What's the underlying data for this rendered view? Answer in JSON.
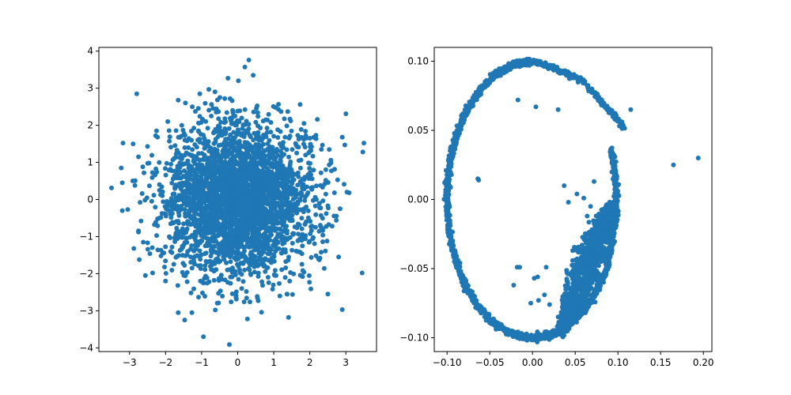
{
  "chart_data": [
    {
      "type": "scatter",
      "title": "",
      "xlabel": "",
      "ylabel": "",
      "xlim": [
        -3.85,
        3.85
      ],
      "ylim": [
        -4.1,
        4.1
      ],
      "xticks": [
        -3,
        -2,
        -1,
        0,
        1,
        2,
        3
      ],
      "xtick_labels": [
        "−3",
        "−2",
        "−1",
        "0",
        "1",
        "2",
        "3"
      ],
      "yticks": [
        -4,
        -3,
        -2,
        -1,
        0,
        1,
        2,
        3,
        4
      ],
      "ytick_labels": [
        "−4",
        "−3",
        "−2",
        "−1",
        "0",
        "1",
        "2",
        "3",
        "4"
      ],
      "grid": false,
      "color": "#1f77b4",
      "series": [
        {
          "values": [
            {
              "x": 0.31,
              "y": 3.76
            },
            {
              "x": 0.2,
              "y": 3.57
            },
            {
              "x": 0.43,
              "y": 3.35
            },
            {
              "x": 0.02,
              "y": 3.2
            },
            {
              "x": -0.27,
              "y": 3.27
            },
            {
              "x": -0.8,
              "y": 2.97
            },
            {
              "x": -0.63,
              "y": 2.9
            },
            {
              "x": -1.05,
              "y": 2.85
            },
            {
              "x": -2.8,
              "y": 2.85
            },
            {
              "x": -0.36,
              "y": 2.72
            },
            {
              "x": -1.65,
              "y": 2.68
            },
            {
              "x": 1.73,
              "y": 2.56
            },
            {
              "x": -1.45,
              "y": 2.6
            },
            {
              "x": -1.26,
              "y": 2.5
            },
            {
              "x": 0.99,
              "y": 2.51
            },
            {
              "x": 1.13,
              "y": 2.43
            },
            {
              "x": 3.0,
              "y": 2.31
            },
            {
              "x": -0.14,
              "y": 2.4
            },
            {
              "x": 0.44,
              "y": 2.36
            },
            {
              "x": 1.47,
              "y": 2.12
            },
            {
              "x": 2.21,
              "y": 2.16
            },
            {
              "x": -1.94,
              "y": 2.1
            },
            {
              "x": -1.55,
              "y": 2.0
            },
            {
              "x": 1.88,
              "y": 1.84
            },
            {
              "x": 2.0,
              "y": 1.65
            },
            {
              "x": -2.25,
              "y": 1.85
            },
            {
              "x": 2.9,
              "y": 1.68
            },
            {
              "x": -3.18,
              "y": 1.52
            },
            {
              "x": -2.9,
              "y": 1.5
            },
            {
              "x": -2.5,
              "y": 1.43
            },
            {
              "x": 3.5,
              "y": 1.52
            },
            {
              "x": 3.47,
              "y": 1.28
            },
            {
              "x": 2.32,
              "y": 1.35
            },
            {
              "x": 2.97,
              "y": 1.47
            },
            {
              "x": -2.75,
              "y": 1.15
            },
            {
              "x": -2.46,
              "y": 0.98
            },
            {
              "x": -3.23,
              "y": 0.85
            },
            {
              "x": -2.6,
              "y": 0.72
            },
            {
              "x": 2.6,
              "y": 0.77
            },
            {
              "x": 2.77,
              "y": 0.53
            },
            {
              "x": -2.91,
              "y": 0.5
            },
            {
              "x": -3.2,
              "y": 0.45
            },
            {
              "x": -2.85,
              "y": 0.38
            },
            {
              "x": -3.5,
              "y": 0.31
            },
            {
              "x": 2.95,
              "y": 0.41
            },
            {
              "x": 3.03,
              "y": 0.2
            },
            {
              "x": 3.09,
              "y": 0.18
            },
            {
              "x": -2.65,
              "y": 0.16
            },
            {
              "x": -2.57,
              "y": -0.02
            },
            {
              "x": 2.5,
              "y": -0.17
            },
            {
              "x": 2.84,
              "y": -0.25
            },
            {
              "x": -3.2,
              "y": -0.3
            },
            {
              "x": -3.05,
              "y": -0.27
            },
            {
              "x": 2.31,
              "y": -0.43
            },
            {
              "x": -2.68,
              "y": -0.58
            },
            {
              "x": -2.31,
              "y": -0.68
            },
            {
              "x": 2.62,
              "y": -0.72
            },
            {
              "x": -2.75,
              "y": -0.88
            },
            {
              "x": 2.36,
              "y": -0.96
            },
            {
              "x": 2.48,
              "y": -1.12
            },
            {
              "x": -2.88,
              "y": -1.32
            },
            {
              "x": -2.37,
              "y": -1.3
            },
            {
              "x": -2.05,
              "y": -1.44
            },
            {
              "x": 2.8,
              "y": -1.55
            },
            {
              "x": -2.73,
              "y": -1.62
            },
            {
              "x": -2.03,
              "y": -1.82
            },
            {
              "x": 2.4,
              "y": -1.86
            },
            {
              "x": -2.36,
              "y": -1.98
            },
            {
              "x": -2.56,
              "y": -2.05
            },
            {
              "x": 3.45,
              "y": -1.98
            },
            {
              "x": 1.99,
              "y": -2.23
            },
            {
              "x": -2.0,
              "y": -2.2
            },
            {
              "x": -1.66,
              "y": -2.32
            },
            {
              "x": 2.03,
              "y": -2.41
            },
            {
              "x": 2.5,
              "y": -2.55
            },
            {
              "x": 1.52,
              "y": -2.56
            },
            {
              "x": -0.91,
              "y": -2.61
            },
            {
              "x": 0.55,
              "y": -2.66
            },
            {
              "x": 0.34,
              "y": -2.76
            },
            {
              "x": -0.53,
              "y": -2.79
            },
            {
              "x": 2.9,
              "y": -2.97
            },
            {
              "x": -0.62,
              "y": -2.98
            },
            {
              "x": -1.27,
              "y": -3.05
            },
            {
              "x": 0.66,
              "y": -3.04
            },
            {
              "x": -1.47,
              "y": -3.25
            },
            {
              "x": 0.27,
              "y": -3.22
            },
            {
              "x": -0.95,
              "y": -3.7
            },
            {
              "x": -0.23,
              "y": -3.91
            },
            {
              "x": 1.41,
              "y": -3.18
            },
            {
              "x": -1.65,
              "y": -3.05
            }
          ]
        }
      ]
    },
    {
      "type": "scatter",
      "title": "",
      "xlabel": "",
      "ylabel": "",
      "xlim": [
        -0.115,
        0.21
      ],
      "ylim": [
        -0.11,
        0.11
      ],
      "xticks": [
        -0.1,
        -0.05,
        0.0,
        0.05,
        0.1,
        0.15,
        0.2
      ],
      "xtick_labels": [
        "−0.10",
        "−0.05",
        "0.00",
        "0.05",
        "0.10",
        "0.15",
        "0.20"
      ],
      "yticks": [
        -0.1,
        -0.05,
        0.0,
        0.05,
        0.1
      ],
      "ytick_labels": [
        "−0.10",
        "−0.05",
        "0.00",
        "0.05",
        "0.10"
      ],
      "grid": false,
      "color": "#1f77b4",
      "series": [
        {
          "values": [
            {
              "x": -0.017,
              "y": 0.072
            },
            {
              "x": 0.004,
              "y": 0.067
            },
            {
              "x": 0.03,
              "y": 0.065
            },
            {
              "x": 0.115,
              "y": 0.065
            },
            {
              "x": 0.165,
              "y": 0.025
            },
            {
              "x": 0.194,
              "y": 0.03
            },
            {
              "x": -0.064,
              "y": 0.015
            },
            {
              "x": -0.063,
              "y": 0.014
            },
            {
              "x": 0.037,
              "y": 0.01
            },
            {
              "x": 0.072,
              "y": 0.013
            },
            {
              "x": 0.052,
              "y": 0.004
            },
            {
              "x": 0.06,
              "y": 0.001
            },
            {
              "x": 0.042,
              "y": -0.002
            },
            {
              "x": 0.016,
              "y": -0.049
            },
            {
              "x": -0.018,
              "y": -0.049
            },
            {
              "x": -0.015,
              "y": -0.049
            },
            {
              "x": 0.002,
              "y": -0.057
            },
            {
              "x": 0.006,
              "y": -0.056
            },
            {
              "x": -0.022,
              "y": -0.062
            },
            {
              "x": 0.007,
              "y": -0.073
            },
            {
              "x": 0.014,
              "y": -0.069
            },
            {
              "x": 0.02,
              "y": -0.076
            },
            {
              "x": -0.002,
              "y": -0.075
            },
            {
              "x": 0.045,
              "y": -0.066
            },
            {
              "x": 0.03,
              "y": -0.085
            },
            {
              "x": 0.047,
              "y": -0.037
            },
            {
              "x": 0.058,
              "y": -0.033
            },
            {
              "x": 0.064,
              "y": -0.012
            },
            {
              "x": 0.068,
              "y": -0.005
            }
          ]
        }
      ]
    }
  ]
}
